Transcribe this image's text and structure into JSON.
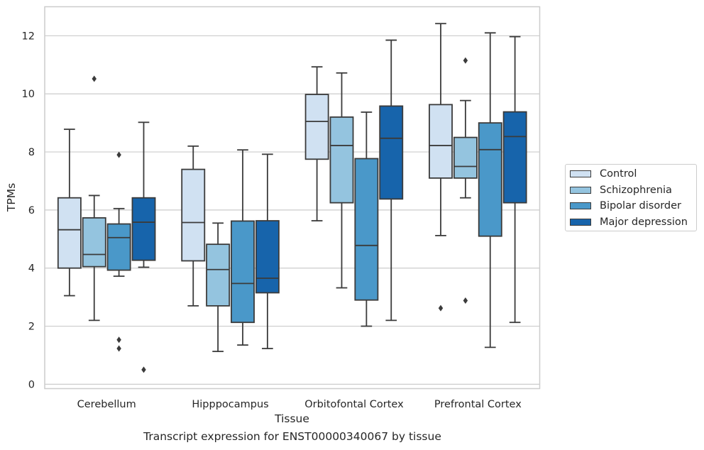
{
  "caption": "Transcript expression for ENST00000340067 by tissue",
  "chart_data": {
    "type": "box",
    "xlabel": "Tissue",
    "ylabel": "TPMs",
    "ylim": [
      -0.15,
      13
    ],
    "yticks": [
      0,
      2,
      4,
      6,
      8,
      10,
      12
    ],
    "grid": "horizontal",
    "legend_position": "right",
    "categories": [
      "Cerebellum",
      "Hipppocampus",
      "Orbitofontal Cortex",
      "Prefrontal Cortex"
    ],
    "series": [
      {
        "name": "Control",
        "color": "#d0e1f2",
        "boxes": [
          {
            "whislo": 3.05,
            "q1": 4.0,
            "med": 5.32,
            "q3": 6.42,
            "whishi": 8.78,
            "fliers": []
          },
          {
            "whislo": 2.7,
            "q1": 4.25,
            "med": 5.57,
            "q3": 7.4,
            "whishi": 8.2,
            "fliers": []
          },
          {
            "whislo": 5.63,
            "q1": 7.75,
            "med": 9.05,
            "q3": 9.98,
            "whishi": 10.93,
            "fliers": []
          },
          {
            "whislo": 5.12,
            "q1": 7.1,
            "med": 8.22,
            "q3": 9.63,
            "whishi": 12.42,
            "fliers": [
              2.62
            ]
          }
        ]
      },
      {
        "name": "Schizophrenia",
        "color": "#94c4df",
        "boxes": [
          {
            "whislo": 2.2,
            "q1": 4.05,
            "med": 4.47,
            "q3": 5.73,
            "whishi": 6.5,
            "fliers": [
              10.52
            ]
          },
          {
            "whislo": 1.13,
            "q1": 2.7,
            "med": 3.95,
            "q3": 4.82,
            "whishi": 5.55,
            "fliers": []
          },
          {
            "whislo": 3.32,
            "q1": 6.25,
            "med": 8.22,
            "q3": 9.2,
            "whishi": 10.72,
            "fliers": []
          },
          {
            "whislo": 6.42,
            "q1": 7.1,
            "med": 7.5,
            "q3": 8.5,
            "whishi": 9.77,
            "fliers": [
              11.15,
              2.88
            ]
          }
        ]
      },
      {
        "name": "Bipolar disorder",
        "color": "#4a98c9",
        "boxes": [
          {
            "whislo": 3.72,
            "q1": 3.93,
            "med": 5.05,
            "q3": 5.52,
            "whishi": 6.05,
            "fliers": [
              7.9,
              1.53,
              1.23
            ]
          },
          {
            "whislo": 1.35,
            "q1": 2.13,
            "med": 3.47,
            "q3": 5.62,
            "whishi": 8.07,
            "fliers": []
          },
          {
            "whislo": 2.0,
            "q1": 2.9,
            "med": 4.78,
            "q3": 7.77,
            "whishi": 9.37,
            "fliers": []
          },
          {
            "whislo": 1.27,
            "q1": 5.1,
            "med": 8.08,
            "q3": 9.0,
            "whishi": 12.1,
            "fliers": []
          }
        ]
      },
      {
        "name": "Major depression",
        "color": "#1764ab",
        "boxes": [
          {
            "whislo": 4.03,
            "q1": 4.27,
            "med": 5.58,
            "q3": 6.42,
            "whishi": 9.02,
            "fliers": [
              0.5
            ]
          },
          {
            "whislo": 1.23,
            "q1": 3.15,
            "med": 3.65,
            "q3": 5.63,
            "whishi": 7.92,
            "fliers": []
          },
          {
            "whislo": 2.2,
            "q1": 6.38,
            "med": 8.47,
            "q3": 9.58,
            "whishi": 11.85,
            "fliers": []
          },
          {
            "whislo": 2.13,
            "q1": 6.25,
            "med": 8.53,
            "q3": 9.38,
            "whishi": 11.97,
            "fliers": []
          }
        ]
      }
    ]
  }
}
